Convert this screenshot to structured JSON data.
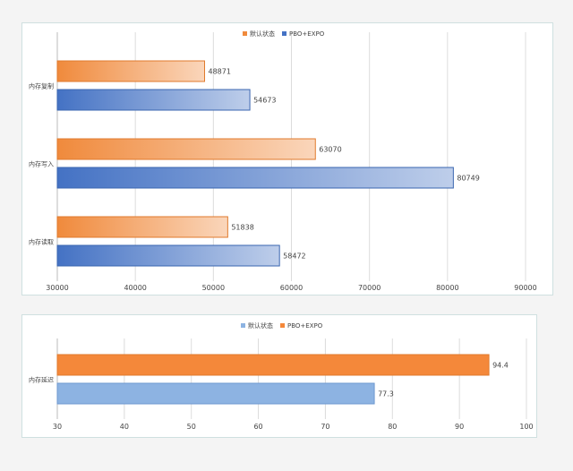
{
  "chart_data": [
    {
      "type": "bar",
      "orientation": "horizontal",
      "categories": [
        "内存复制",
        "内存写入",
        "内存读取"
      ],
      "series": [
        {
          "name": "默认状态",
          "values": [
            48871,
            63070,
            51838
          ]
        },
        {
          "name": "PBO+EXPO",
          "values": [
            54673,
            80749,
            58472
          ]
        }
      ],
      "xlim": [
        30000,
        90000
      ],
      "xticks": [
        30000,
        40000,
        50000,
        60000,
        70000,
        80000,
        90000
      ],
      "grid": "vertical",
      "legend_position": "top",
      "series_colors": [
        "#f08a3c",
        "#4472c4"
      ]
    },
    {
      "type": "bar",
      "orientation": "horizontal",
      "categories": [
        "内存延迟"
      ],
      "series": [
        {
          "name": "PBO+EXPO",
          "values": [
            94.4
          ]
        },
        {
          "name": "默认状态",
          "values": [
            77.3
          ]
        }
      ],
      "legend": [
        {
          "name": "默认状态",
          "color": "#8db3e2"
        },
        {
          "name": "PBO+EXPO",
          "color": "#f4883a"
        }
      ],
      "xlim": [
        30,
        100
      ],
      "xticks": [
        30,
        40,
        50,
        60,
        70,
        80,
        90,
        100
      ],
      "grid": "vertical",
      "legend_position": "top",
      "series_colors": [
        "#f4883a",
        "#8db3e2"
      ]
    }
  ]
}
